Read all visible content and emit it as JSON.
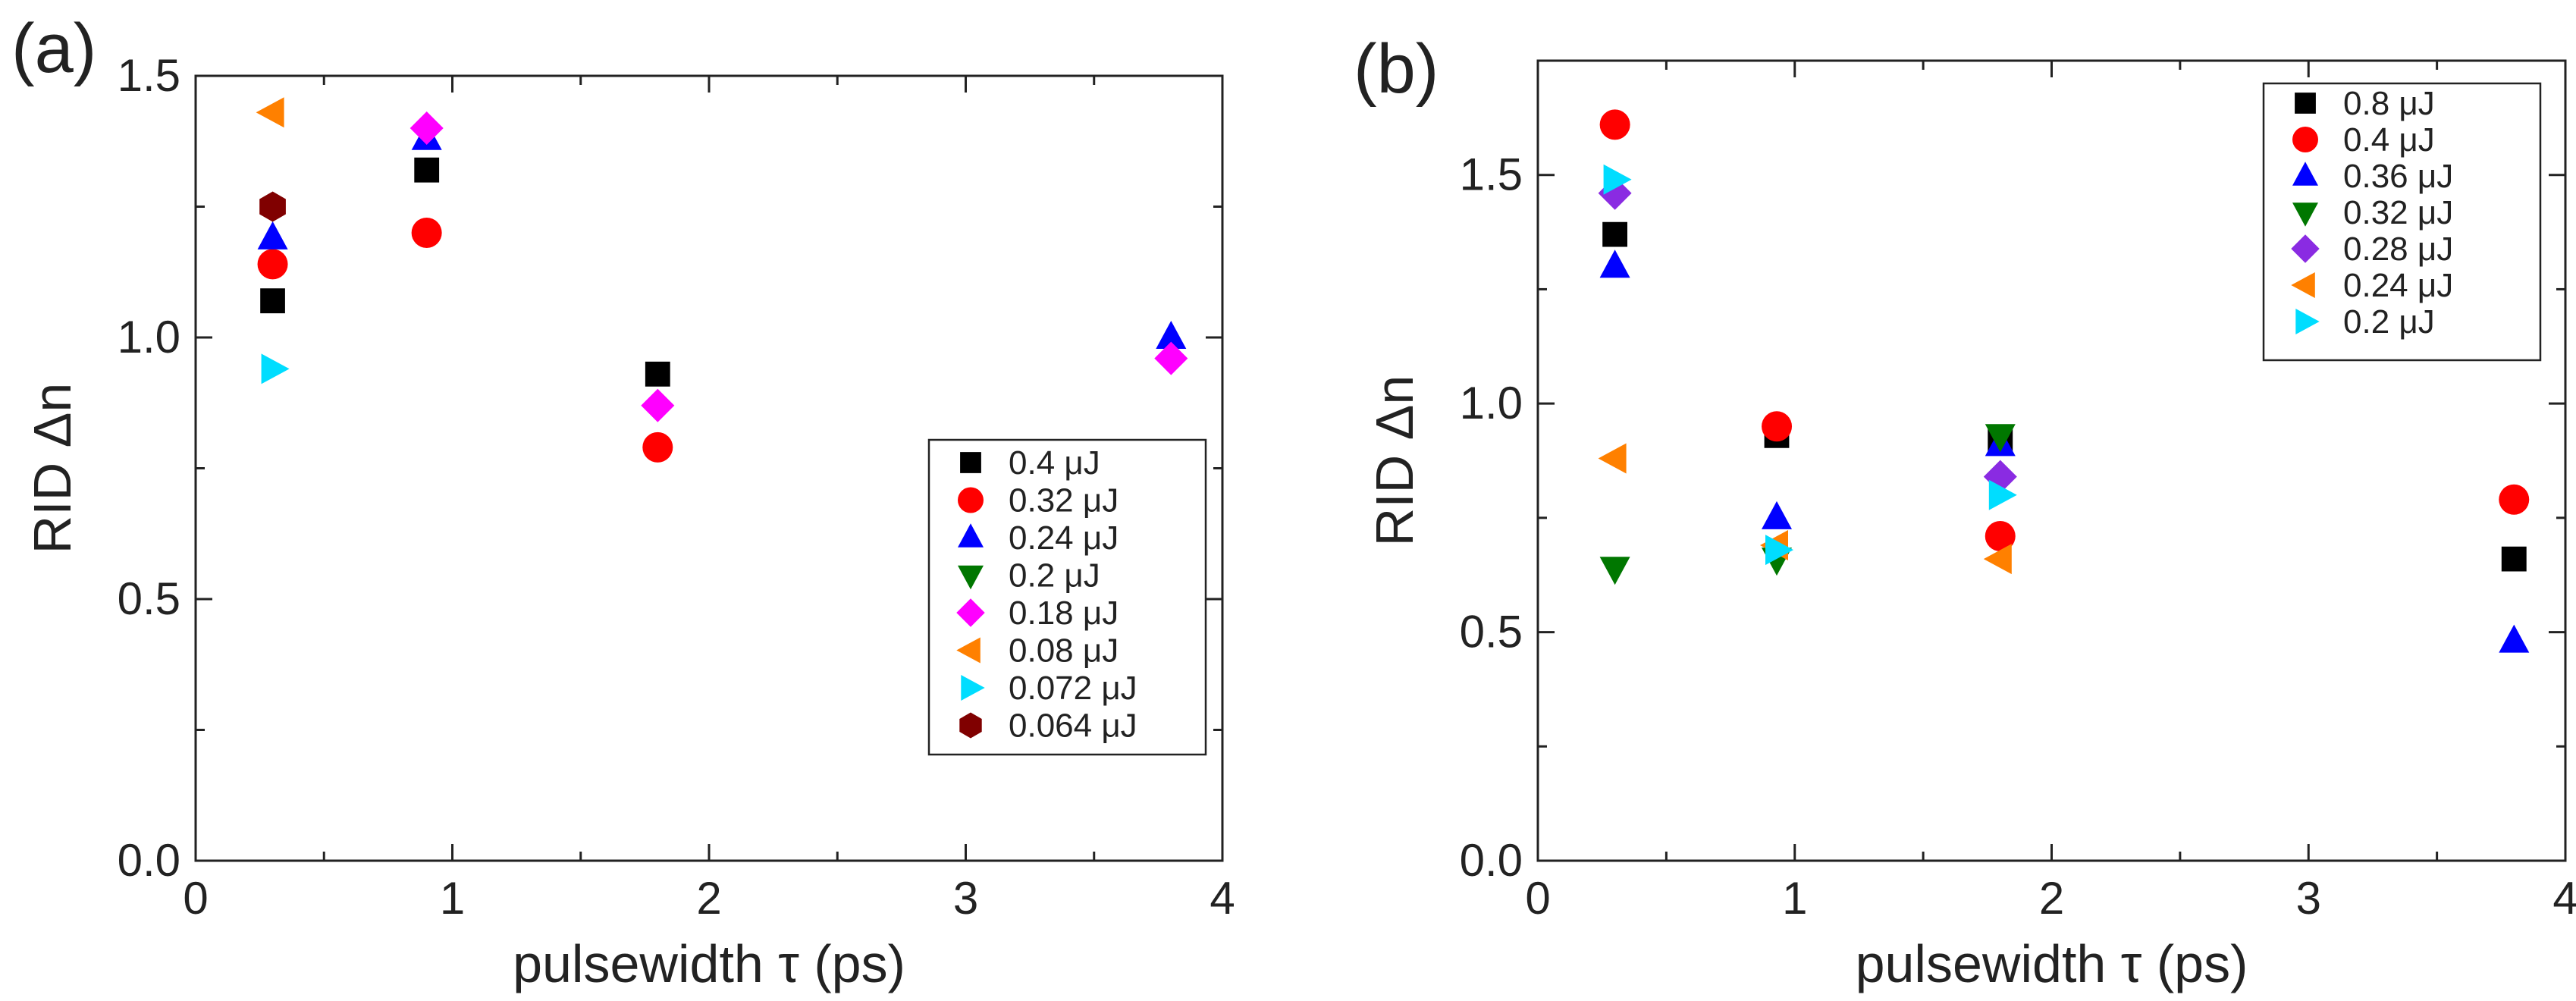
{
  "chart_data": [
    {
      "type": "scatter",
      "panel_label": "(a)",
      "xlabel": "pulsewidth τ (ps)",
      "ylabel": "RID Δn",
      "xlim": [
        0,
        4
      ],
      "ylim": [
        0,
        1.5
      ],
      "x_ticks": [
        "0",
        "1",
        "2",
        "3",
        "4"
      ],
      "y_ticks": [
        "0.0",
        "0.5",
        "1.0",
        "1.5"
      ],
      "legend_position": "lower-right",
      "series": [
        {
          "name": "0.4 μJ",
          "marker": "square",
          "color": "#000000",
          "points": [
            [
              0.3,
              1.07
            ],
            [
              0.9,
              1.32
            ],
            [
              1.8,
              0.93
            ]
          ]
        },
        {
          "name": "0.32 μJ",
          "marker": "circle",
          "color": "#ff0000",
          "points": [
            [
              0.3,
              1.14
            ],
            [
              0.9,
              1.2
            ],
            [
              1.8,
              0.79
            ]
          ]
        },
        {
          "name": "0.24 μJ",
          "marker": "triangle-up",
          "color": "#0000ff",
          "points": [
            [
              0.3,
              1.19
            ],
            [
              0.9,
              1.38
            ],
            [
              3.8,
              1.0
            ]
          ]
        },
        {
          "name": "0.2 μJ",
          "marker": "triangle-down",
          "color": "#007700",
          "points": []
        },
        {
          "name": "0.18 μJ",
          "marker": "diamond",
          "color": "#ff00ff",
          "points": [
            [
              0.9,
              1.4
            ],
            [
              1.8,
              0.87
            ],
            [
              3.8,
              0.96
            ]
          ]
        },
        {
          "name": "0.08 μJ",
          "marker": "triangle-left",
          "color": "#ff8000",
          "points": [
            [
              0.3,
              1.43
            ]
          ]
        },
        {
          "name": "0.072 μJ",
          "marker": "triangle-right",
          "color": "#00ddff",
          "points": [
            [
              0.3,
              0.94
            ]
          ]
        },
        {
          "name": "0.064 μJ",
          "marker": "hexagon",
          "color": "#800000",
          "points": [
            [
              0.3,
              1.25
            ]
          ]
        }
      ]
    },
    {
      "type": "scatter",
      "panel_label": "(b)",
      "xlabel": "pulsewidth τ (ps)",
      "ylabel": "RID Δn",
      "xlim": [
        0,
        4
      ],
      "ylim": [
        0,
        1.75
      ],
      "x_ticks": [
        "0",
        "1",
        "2",
        "3",
        "4"
      ],
      "y_ticks": [
        "0.0",
        "0.5",
        "1.0",
        "1.5"
      ],
      "legend_position": "top-right",
      "series": [
        {
          "name": "0.8 μJ",
          "marker": "square",
          "color": "#000000",
          "points": [
            [
              0.3,
              1.37
            ],
            [
              0.93,
              0.93
            ],
            [
              1.8,
              0.92
            ],
            [
              3.8,
              0.66
            ]
          ]
        },
        {
          "name": "0.4 μJ",
          "marker": "circle",
          "color": "#ff0000",
          "points": [
            [
              0.3,
              1.61
            ],
            [
              0.93,
              0.95
            ],
            [
              1.8,
              0.71
            ],
            [
              3.8,
              0.79
            ]
          ]
        },
        {
          "name": "0.36 μJ",
          "marker": "triangle-up",
          "color": "#0000ff",
          "points": [
            [
              0.3,
              1.3
            ],
            [
              0.93,
              0.75
            ],
            [
              1.8,
              0.91
            ],
            [
              3.8,
              0.48
            ]
          ]
        },
        {
          "name": "0.32 μJ",
          "marker": "triangle-down",
          "color": "#007700",
          "points": [
            [
              0.3,
              0.64
            ],
            [
              0.93,
              0.66
            ],
            [
              1.8,
              0.93
            ]
          ]
        },
        {
          "name": "0.28 μJ",
          "marker": "diamond",
          "color": "#8a2be2",
          "points": [
            [
              0.3,
              1.46
            ],
            [
              1.8,
              0.84
            ]
          ]
        },
        {
          "name": "0.24 μJ",
          "marker": "triangle-left",
          "color": "#ff8000",
          "points": [
            [
              0.3,
              0.88
            ],
            [
              0.93,
              0.69
            ],
            [
              1.8,
              0.66
            ]
          ]
        },
        {
          "name": "0.2 μJ",
          "marker": "triangle-right",
          "color": "#00ddff",
          "points": [
            [
              0.3,
              1.49
            ],
            [
              0.93,
              0.68
            ],
            [
              1.8,
              0.8
            ]
          ]
        }
      ]
    }
  ]
}
